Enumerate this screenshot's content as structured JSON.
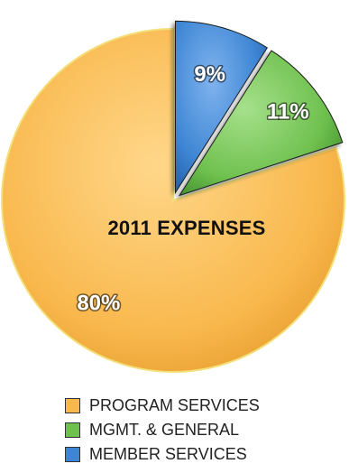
{
  "chart_data": {
    "type": "pie",
    "title": "2011  EXPENSES",
    "legend_position": "bottom",
    "slices": [
      {
        "label": "PROGRAM SERVICES",
        "value": 80,
        "value_label": "80%",
        "color": "#F9B84D",
        "exploded": false
      },
      {
        "label": "MGMT. & GENERAL",
        "value": 11,
        "value_label": "11%",
        "color": "#6FC14F",
        "exploded": true
      },
      {
        "label": "MEMBER SERVICES",
        "value": 9,
        "value_label": "9%",
        "color": "#3E86D4",
        "exploded": true
      }
    ]
  }
}
